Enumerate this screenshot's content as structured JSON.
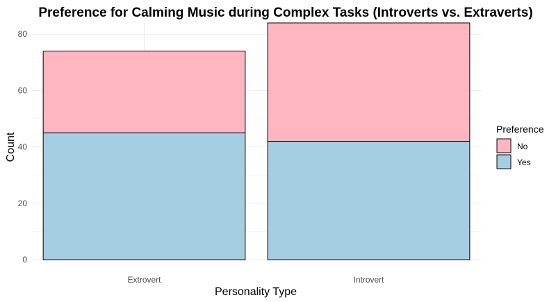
{
  "chart_data": {
    "type": "bar",
    "stacked": true,
    "title": "Preference for Calming Music during Complex Tasks (Introverts vs. Extraverts)",
    "xlabel": "Personality Type",
    "ylabel": "Count",
    "categories": [
      "Extrovert",
      "Introvert"
    ],
    "series": [
      {
        "name": "Yes",
        "values": [
          45,
          42
        ],
        "color": "#a6cee3"
      },
      {
        "name": "No",
        "values": [
          29,
          42
        ],
        "color": "#ffb6c1"
      }
    ],
    "ylim": [
      0,
      84
    ],
    "yticks": [
      "0",
      "20",
      "40",
      "60",
      "80"
    ],
    "grid": true,
    "legend": {
      "title": "Preference",
      "position": "right",
      "order": [
        "No",
        "Yes"
      ]
    }
  }
}
